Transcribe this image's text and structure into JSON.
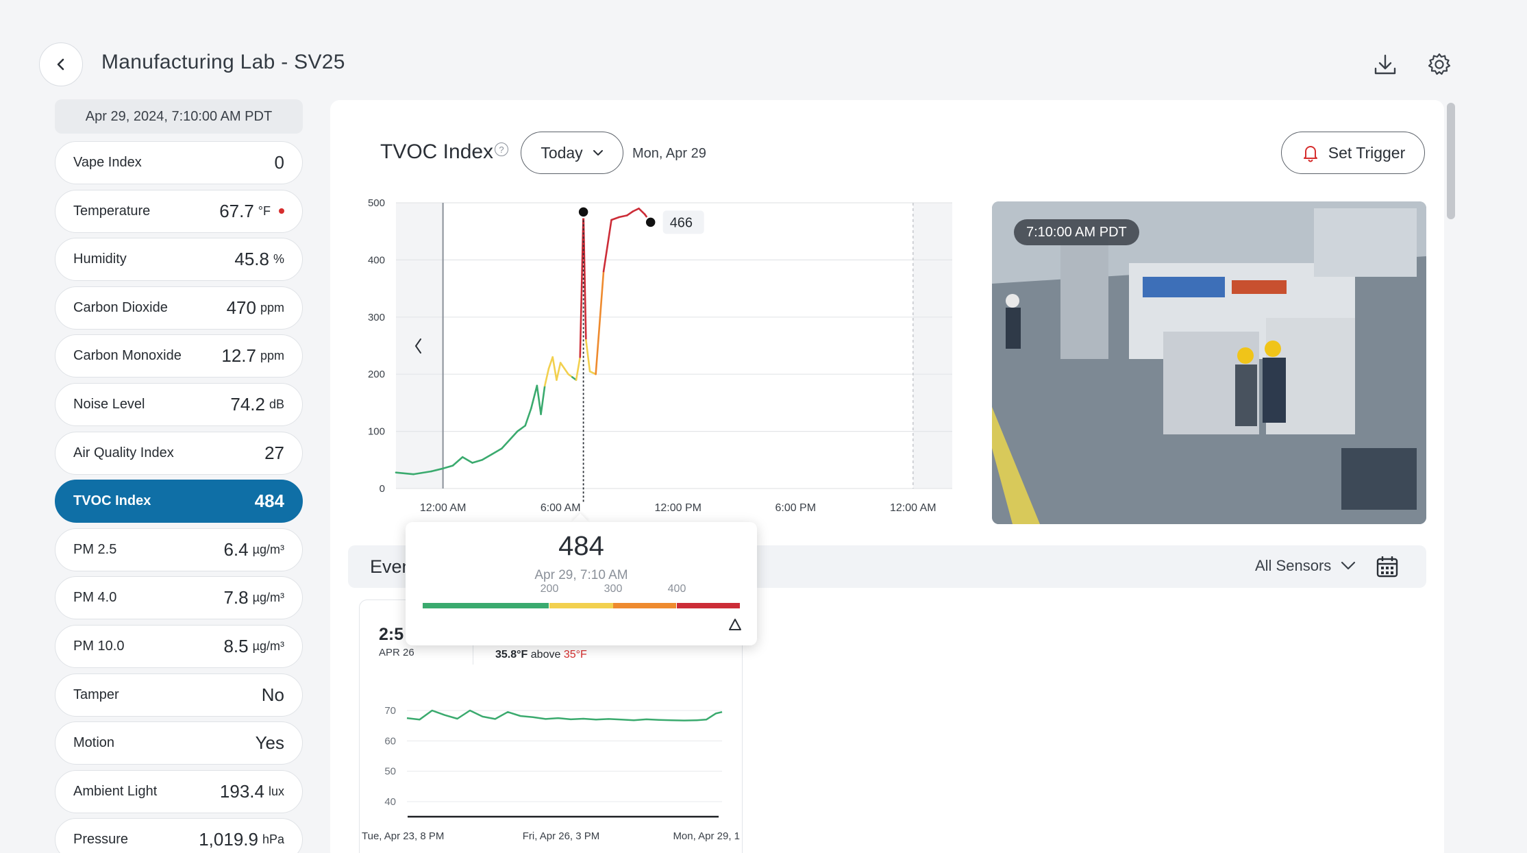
{
  "header": {
    "title": "Manufacturing Lab - SV25"
  },
  "sidebar": {
    "timestamp": "Apr 29, 2024, 7:10:00 AM PDT",
    "items": [
      {
        "label": "Vape Index",
        "value": "0",
        "unit": ""
      },
      {
        "label": "Temperature",
        "value": "67.7",
        "unit": "°F",
        "alert": true
      },
      {
        "label": "Humidity",
        "value": "45.8",
        "unit": "%"
      },
      {
        "label": "Carbon Dioxide",
        "value": "470",
        "unit": "ppm"
      },
      {
        "label": "Carbon Monoxide",
        "value": "12.7",
        "unit": "ppm"
      },
      {
        "label": "Noise Level",
        "value": "74.2",
        "unit": "dB"
      },
      {
        "label": "Air Quality Index",
        "value": "27",
        "unit": ""
      },
      {
        "label": "TVOC Index",
        "value": "484",
        "unit": "",
        "active": true
      },
      {
        "label": "PM 2.5",
        "value": "6.4",
        "unit": "µg/m³"
      },
      {
        "label": "PM 4.0",
        "value": "7.8",
        "unit": "µg/m³"
      },
      {
        "label": "PM 10.0",
        "value": "8.5",
        "unit": "µg/m³"
      },
      {
        "label": "Tamper",
        "value": "No",
        "unit": ""
      },
      {
        "label": "Motion",
        "value": "Yes",
        "unit": ""
      },
      {
        "label": "Ambient Light",
        "value": "193.4",
        "unit": "lux"
      },
      {
        "label": "Pressure",
        "value": "1,019.9",
        "unit": "hPa"
      }
    ]
  },
  "main": {
    "metric_title": "TVOC Index",
    "range": "Today",
    "date_label": "Mon, Apr 29",
    "trigger_label": "Set Trigger",
    "camera_time": "7:10:00 AM PDT"
  },
  "popup": {
    "value": "484",
    "date": "Apr 29, 7:10 AM",
    "scale_ticks": [
      "200",
      "300",
      "400"
    ],
    "scale_colors": [
      "#3aaa6e",
      "#f2d04e",
      "#ee8a2e",
      "#cc2c37"
    ]
  },
  "events": {
    "title": "Events",
    "sensor_filter": "All Sensors",
    "card": {
      "time": "2:5",
      "date": "APR 26",
      "value_text": "35.8°F",
      "above_text": "above",
      "threshold_text": "35°F"
    }
  },
  "chart_data": [
    {
      "type": "line",
      "title": "TVOC Index",
      "x_tick_labels": [
        "12:00 AM",
        "6:00 AM",
        "12:00 PM",
        "6:00 PM",
        "12:00 AM"
      ],
      "y_ticks": [
        0,
        100,
        200,
        300,
        400,
        500
      ],
      "ylim": [
        0,
        500
      ],
      "x_hours_range": [
        -2.4,
        26
      ],
      "series": [
        {
          "x": [
            -2.4,
            -1.5,
            -0.6,
            0,
            0.5,
            1,
            1.5,
            2,
            2.5,
            3,
            3.4,
            3.8,
            4.2,
            4.5,
            4.8,
            5.0,
            5.2,
            5.4,
            5.6,
            5.8,
            6.0,
            6.2,
            6.4,
            6.6,
            6.8,
            7.0,
            7.17,
            7.3,
            7.5,
            7.8,
            8.2,
            8.6,
            9.0,
            9.4,
            9.7,
            10.0,
            10.3,
            10.6
          ],
          "y": [
            28,
            25,
            30,
            35,
            40,
            55,
            45,
            50,
            60,
            70,
            85,
            100,
            110,
            140,
            180,
            130,
            180,
            210,
            230,
            190,
            220,
            210,
            200,
            195,
            190,
            230,
            484,
            260,
            205,
            200,
            380,
            470,
            475,
            478,
            485,
            490,
            480,
            466
          ]
        }
      ],
      "annotations": [
        {
          "x": 7.17,
          "y": 484,
          "label": "484"
        },
        {
          "x": 10.6,
          "y": 466,
          "label": "466"
        }
      ]
    },
    {
      "type": "line",
      "x_tick_labels": [
        "Tue, Apr 23, 8 PM",
        "Fri, Apr 26, 3 PM",
        "Mon, Apr 29, 1"
      ],
      "y_ticks": [
        40,
        50,
        60,
        70
      ],
      "ylim": [
        40,
        70
      ],
      "series": [
        {
          "x": [
            0,
            0.04,
            0.08,
            0.12,
            0.16,
            0.2,
            0.24,
            0.28,
            0.32,
            0.36,
            0.4,
            0.44,
            0.48,
            0.52,
            0.56,
            0.6,
            0.64,
            0.68,
            0.72,
            0.76,
            0.8,
            0.84,
            0.88,
            0.92,
            0.95,
            0.98,
            1.0
          ],
          "y": [
            67.5,
            67.0,
            70.0,
            68.5,
            67.3,
            70.0,
            68.0,
            67.2,
            69.5,
            68.2,
            67.8,
            67.2,
            67.5,
            67.1,
            67.3,
            67.0,
            67.2,
            67.0,
            66.8,
            67.1,
            66.9,
            66.8,
            66.7,
            66.8,
            67.0,
            69.0,
            69.5
          ]
        }
      ]
    }
  ]
}
